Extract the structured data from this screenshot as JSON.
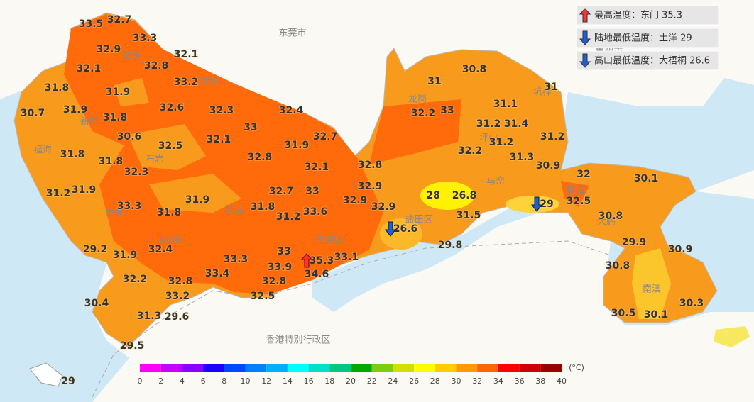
{
  "map": {
    "legend": [
      "最高温度：东门 35.3",
      "陆地最低温度：土洋 29",
      "高山最低温度：大梧桐 26.6"
    ],
    "places": [
      "东莞市",
      "惠州市",
      "香港特别行政区",
      "盐田区",
      "南澳",
      "大鹏",
      "罗湖区",
      "南山区",
      "龙岗",
      "坪山",
      "福海",
      "新桥",
      "石岩",
      "民治",
      "葵涌",
      "坑梓",
      "马峦",
      "龙华",
      "西乡",
      "福永"
    ],
    "stations": [
      33.5,
      32.7,
      33.3,
      32.9,
      32.1,
      32.8,
      32.1,
      33.2,
      31.8,
      31.9,
      32.6,
      32.3,
      32.4,
      30.7,
      31.9,
      31.8,
      33,
      30.6,
      32.7,
      32.1,
      32.5,
      31.9,
      32.8,
      31.8,
      31.8,
      32.3,
      32.1,
      32.8,
      31.2,
      31.9,
      32.7,
      33,
      32.9,
      31.9,
      33.3,
      31.8,
      31.8,
      33.6,
      32.9,
      32.9,
      31.2,
      29.2,
      31.9,
      32.4,
      33.3,
      33,
      35.3,
      33.1,
      33.4,
      33.9,
      34.6,
      32.2,
      32.8,
      32.8,
      33.2,
      32.5,
      30.4,
      31.3,
      29.6,
      29.5,
      29,
      32.2,
      33,
      31,
      30.8,
      31,
      31.1,
      31.2,
      31.4,
      31.2,
      31.2,
      32.2,
      31.3,
      30.9,
      32,
      30.1,
      28,
      26.8,
      29,
      32.5,
      31.5,
      26.6,
      30.8,
      29.8,
      29.9,
      30.9,
      30.8,
      30.5,
      30.1,
      30.3
    ],
    "colorbar": {
      "unit": "(°C)",
      "ticks": [
        0,
        2,
        4,
        6,
        8,
        10,
        12,
        14,
        16,
        18,
        20,
        22,
        24,
        26,
        28,
        30,
        32,
        34,
        36,
        38,
        40
      ],
      "colors": [
        "#ff00ff",
        "#c400ff",
        "#8a00ff",
        "#1a00ff",
        "#0048ff",
        "#0080ff",
        "#00b0ff",
        "#00ffff",
        "#00e0c8",
        "#00c880",
        "#00a800",
        "#7ccc10",
        "#d0e000",
        "#ffff00",
        "#ffcc00",
        "#ff9900",
        "#ff6600",
        "#ff0000",
        "#cc0000",
        "#990000"
      ]
    }
  }
}
